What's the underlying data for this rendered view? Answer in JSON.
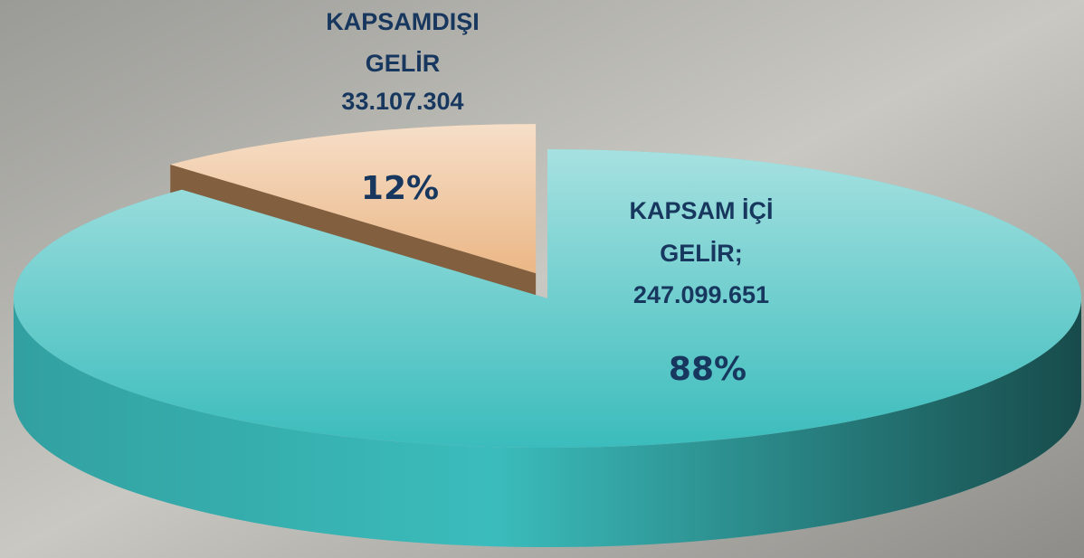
{
  "chart_data": {
    "type": "pie3d",
    "labels": [
      [
        "KAPSAMDIŞI",
        "GELİR",
        "33.107.304"
      ],
      [
        "KAPSAM İÇİ",
        "GELİR;",
        "247.099.651"
      ]
    ],
    "values": [
      12,
      88
    ],
    "value_labels": [
      "12%",
      "88%"
    ],
    "colors": [
      "#ebb786",
      "#3bbcbc"
    ],
    "explode": [
      true,
      false
    ]
  }
}
